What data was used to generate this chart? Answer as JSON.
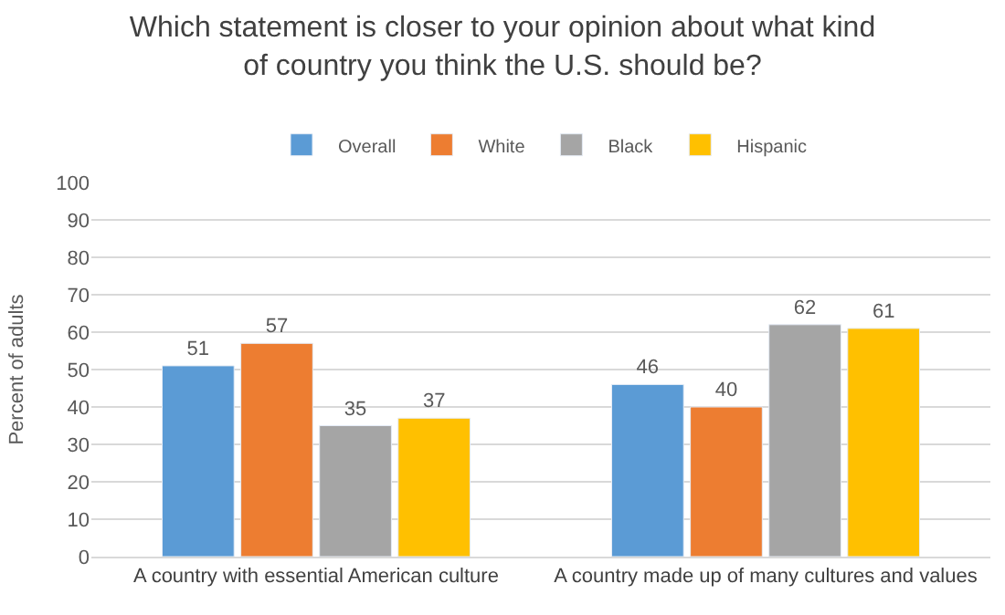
{
  "chart_data": {
    "type": "bar",
    "title": "Which statement is closer to your opinion about what kind\nof country you think the U.S. should be?",
    "ylabel": "Percent of adults",
    "categories": [
      "A country with essential American culture",
      "A country made up of many cultures and values"
    ],
    "series": [
      {
        "name": "Overall",
        "color": "#5b9bd5",
        "values": [
          51,
          46
        ]
      },
      {
        "name": "White",
        "color": "#ed7d31",
        "values": [
          57,
          40
        ]
      },
      {
        "name": "Black",
        "color": "#a5a5a5",
        "values": [
          35,
          62
        ]
      },
      {
        "name": "Hispanic",
        "color": "#ffc000",
        "values": [
          37,
          61
        ]
      }
    ],
    "ylim": [
      0,
      100
    ],
    "yticks": [
      0,
      10,
      20,
      30,
      40,
      50,
      60,
      70,
      80,
      90,
      100
    ],
    "grid": "y",
    "legend": "top",
    "data_labels": true
  }
}
